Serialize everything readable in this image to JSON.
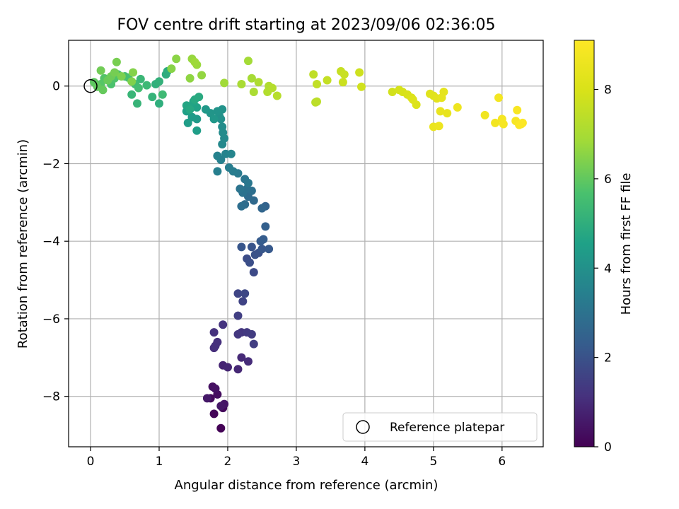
{
  "chart_data": {
    "type": "scatter",
    "title": "FOV centre drift starting at 2023/09/06 02:36:05",
    "xlabel": "Angular distance from reference (arcmin)",
    "ylabel": "Rotation from reference (arcmin)",
    "xlim": [
      -0.32,
      6.6
    ],
    "ylim": [
      -9.3,
      1.18
    ],
    "xticks": [
      0,
      1,
      2,
      3,
      4,
      5,
      6
    ],
    "yticks": [
      0,
      -2,
      -4,
      -6,
      -8
    ],
    "grid": true,
    "legend": {
      "placement": "lower-right",
      "entries": [
        "Reference platepar"
      ]
    },
    "reference_point": {
      "x": 0,
      "y": 0
    },
    "colorbar": {
      "label": "Hours from first FF file",
      "range": [
        0,
        9.1
      ],
      "ticks": [
        0,
        2,
        4,
        6,
        8
      ],
      "colormap": "viridis"
    },
    "points": [
      [
        1.9,
        -8.82,
        0.05
      ],
      [
        1.8,
        -8.45,
        0.1
      ],
      [
        1.93,
        -8.3,
        0.15
      ],
      [
        1.75,
        -8.05,
        0.2
      ],
      [
        1.85,
        -7.95,
        0.3
      ],
      [
        1.78,
        -7.75,
        0.35
      ],
      [
        1.82,
        -7.8,
        0.4
      ],
      [
        1.95,
        -8.2,
        0.45
      ],
      [
        1.9,
        -8.25,
        0.5
      ],
      [
        1.7,
        -8.05,
        0.55
      ],
      [
        1.93,
        -7.2,
        0.8
      ],
      [
        2.0,
        -7.25,
        0.85
      ],
      [
        2.15,
        -7.3,
        0.9
      ],
      [
        2.2,
        -7.0,
        0.95
      ],
      [
        2.3,
        -7.1,
        1.0
      ],
      [
        1.8,
        -6.75,
        1.05
      ],
      [
        1.85,
        -6.6,
        1.1
      ],
      [
        1.82,
        -6.7,
        1.1
      ],
      [
        1.8,
        -6.35,
        1.15
      ],
      [
        1.93,
        -6.15,
        1.2
      ],
      [
        2.2,
        -6.35,
        1.25
      ],
      [
        2.15,
        -6.4,
        1.3
      ],
      [
        2.28,
        -6.35,
        1.35
      ],
      [
        2.35,
        -6.4,
        1.4
      ],
      [
        2.38,
        -6.65,
        1.45
      ],
      [
        2.15,
        -5.92,
        1.5
      ],
      [
        2.22,
        -5.55,
        1.6
      ],
      [
        2.15,
        -5.35,
        1.65
      ],
      [
        2.25,
        -5.35,
        1.7
      ],
      [
        2.38,
        -4.8,
        1.8
      ],
      [
        2.28,
        -4.45,
        1.85
      ],
      [
        2.32,
        -4.55,
        1.9
      ],
      [
        2.45,
        -4.3,
        1.95
      ],
      [
        2.4,
        -4.35,
        2.0
      ],
      [
        2.35,
        -4.15,
        2.05
      ],
      [
        2.2,
        -4.15,
        2.1
      ],
      [
        2.5,
        -4.2,
        2.15
      ],
      [
        2.6,
        -4.2,
        2.2
      ],
      [
        2.48,
        -4.0,
        2.25
      ],
      [
        2.52,
        -3.95,
        2.3
      ],
      [
        2.55,
        -3.62,
        2.4
      ],
      [
        2.55,
        -3.1,
        2.5
      ],
      [
        2.5,
        -3.15,
        2.6
      ],
      [
        2.38,
        -2.95,
        2.7
      ],
      [
        2.3,
        -2.85,
        2.75
      ],
      [
        2.25,
        -3.05,
        2.8
      ],
      [
        2.2,
        -3.1,
        2.85
      ],
      [
        2.35,
        -2.7,
        2.9
      ],
      [
        2.28,
        -2.65,
        2.95
      ],
      [
        2.22,
        -2.75,
        3.0
      ],
      [
        2.18,
        -2.65,
        3.05
      ],
      [
        2.25,
        -2.4,
        3.1
      ],
      [
        2.3,
        -2.5,
        3.15
      ],
      [
        2.15,
        -2.25,
        3.25
      ],
      [
        2.08,
        -2.2,
        3.3
      ],
      [
        2.02,
        -2.1,
        3.35
      ],
      [
        1.85,
        -2.2,
        3.4
      ],
      [
        1.9,
        -1.9,
        3.45
      ],
      [
        1.85,
        -1.8,
        3.5
      ],
      [
        1.97,
        -1.75,
        3.55
      ],
      [
        2.05,
        -1.75,
        3.6
      ],
      [
        1.92,
        -1.5,
        3.7
      ],
      [
        1.95,
        -1.35,
        3.75
      ],
      [
        1.93,
        -1.2,
        3.8
      ],
      [
        1.92,
        -1.05,
        3.85
      ],
      [
        1.9,
        -0.85,
        3.95
      ],
      [
        1.88,
        -0.78,
        4.0
      ],
      [
        1.92,
        -0.6,
        4.05
      ],
      [
        1.85,
        -0.65,
        4.1
      ],
      [
        1.75,
        -0.7,
        4.15
      ],
      [
        1.8,
        -0.85,
        4.2
      ],
      [
        1.68,
        -0.6,
        4.25
      ],
      [
        1.55,
        -0.85,
        4.3
      ],
      [
        1.48,
        -0.8,
        4.35
      ],
      [
        1.42,
        -0.95,
        4.4
      ],
      [
        1.55,
        -1.15,
        4.45
      ],
      [
        1.4,
        -0.65,
        4.5
      ],
      [
        1.48,
        -0.5,
        4.55
      ],
      [
        1.55,
        -0.55,
        4.6
      ],
      [
        1.5,
        -0.4,
        4.65
      ],
      [
        1.4,
        -0.5,
        4.7
      ],
      [
        1.45,
        -0.6,
        4.75
      ],
      [
        1.52,
        -0.35,
        4.8
      ],
      [
        1.58,
        -0.28,
        4.85
      ],
      [
        1.12,
        0.38,
        4.9
      ],
      [
        1.1,
        0.3,
        4.95
      ],
      [
        1.0,
        -0.45,
        5.0
      ],
      [
        0.95,
        0.05,
        5.05
      ],
      [
        1.0,
        0.12,
        5.1
      ],
      [
        0.9,
        -0.28,
        5.15
      ],
      [
        0.68,
        -0.45,
        5.2
      ],
      [
        0.6,
        -0.22,
        5.25
      ],
      [
        0.73,
        0.18,
        5.3
      ],
      [
        0.82,
        0.02,
        5.35
      ],
      [
        1.05,
        -0.22,
        5.4
      ],
      [
        0.65,
        0.05,
        5.45
      ],
      [
        0.7,
        -0.05,
        5.5
      ],
      [
        0.5,
        0.25,
        5.55
      ],
      [
        0.55,
        0.22,
        5.6
      ],
      [
        0.4,
        0.3,
        5.65
      ],
      [
        0.3,
        0.05,
        5.7
      ],
      [
        0.35,
        0.2,
        5.75
      ],
      [
        0.2,
        0.2,
        5.8
      ],
      [
        0.15,
        0.05,
        5.85
      ],
      [
        0.08,
        0.05,
        5.9
      ],
      [
        0.05,
        0.1,
        5.95
      ],
      [
        0.1,
        -0.02,
        6.0
      ],
      [
        0.18,
        -0.1,
        6.05
      ],
      [
        0.25,
        0.15,
        6.1
      ],
      [
        0.3,
        0.25,
        6.15
      ],
      [
        0.15,
        0.4,
        6.2
      ],
      [
        0.35,
        0.35,
        6.25
      ],
      [
        0.38,
        0.62,
        6.3
      ],
      [
        0.45,
        0.25,
        6.35
      ],
      [
        0.6,
        0.12,
        6.4
      ],
      [
        0.62,
        0.35,
        6.45
      ],
      [
        1.18,
        0.45,
        6.5
      ],
      [
        1.25,
        0.7,
        6.55
      ],
      [
        1.45,
        0.2,
        6.6
      ],
      [
        1.62,
        0.28,
        6.65
      ],
      [
        1.48,
        0.7,
        6.7
      ],
      [
        1.55,
        0.55,
        6.75
      ],
      [
        1.52,
        0.62,
        6.8
      ],
      [
        1.95,
        0.08,
        6.85
      ],
      [
        2.3,
        0.65,
        6.9
      ],
      [
        2.35,
        0.2,
        6.95
      ],
      [
        2.2,
        0.05,
        7.0
      ],
      [
        2.38,
        -0.15,
        7.05
      ],
      [
        2.45,
        0.1,
        7.1
      ],
      [
        2.6,
        0.0,
        7.15
      ],
      [
        2.58,
        -0.15,
        7.2
      ],
      [
        2.65,
        -0.05,
        7.25
      ],
      [
        2.72,
        -0.25,
        7.3
      ],
      [
        3.28,
        -0.42,
        7.35
      ],
      [
        3.3,
        -0.4,
        7.4
      ],
      [
        3.25,
        0.3,
        7.45
      ],
      [
        3.3,
        0.05,
        7.5
      ],
      [
        3.45,
        0.15,
        7.55
      ],
      [
        3.65,
        0.38,
        7.6
      ],
      [
        3.7,
        0.3,
        7.65
      ],
      [
        3.68,
        0.1,
        7.7
      ],
      [
        3.92,
        0.35,
        7.75
      ],
      [
        3.95,
        -0.02,
        7.8
      ],
      [
        4.4,
        -0.15,
        7.85
      ],
      [
        4.5,
        -0.1,
        7.9
      ],
      [
        4.55,
        -0.15,
        7.95
      ],
      [
        4.62,
        -0.22,
        8.0
      ],
      [
        4.68,
        -0.3,
        8.05
      ],
      [
        4.75,
        -0.48,
        8.1
      ],
      [
        4.7,
        -0.35,
        8.15
      ],
      [
        4.95,
        -0.2,
        8.2
      ],
      [
        5.0,
        -0.25,
        8.25
      ],
      [
        5.05,
        -0.32,
        8.3
      ],
      [
        5.15,
        -0.15,
        8.35
      ],
      [
        5.12,
        -0.3,
        8.4
      ],
      [
        5.2,
        -0.7,
        8.45
      ],
      [
        5.1,
        -0.65,
        8.5
      ],
      [
        5.0,
        -1.05,
        8.55
      ],
      [
        5.08,
        -1.03,
        8.6
      ],
      [
        5.35,
        -0.55,
        8.65
      ],
      [
        5.75,
        -0.75,
        8.7
      ],
      [
        5.9,
        -0.95,
        8.75
      ],
      [
        5.95,
        -0.3,
        8.8
      ],
      [
        6.0,
        -0.85,
        8.85
      ],
      [
        6.02,
        -0.98,
        8.9
      ],
      [
        6.2,
        -0.9,
        8.92
      ],
      [
        6.22,
        -0.62,
        8.95
      ],
      [
        6.25,
        -1.0,
        9.0
      ],
      [
        6.3,
        -0.95,
        9.05
      ],
      [
        6.28,
        -0.98,
        9.08
      ]
    ]
  }
}
